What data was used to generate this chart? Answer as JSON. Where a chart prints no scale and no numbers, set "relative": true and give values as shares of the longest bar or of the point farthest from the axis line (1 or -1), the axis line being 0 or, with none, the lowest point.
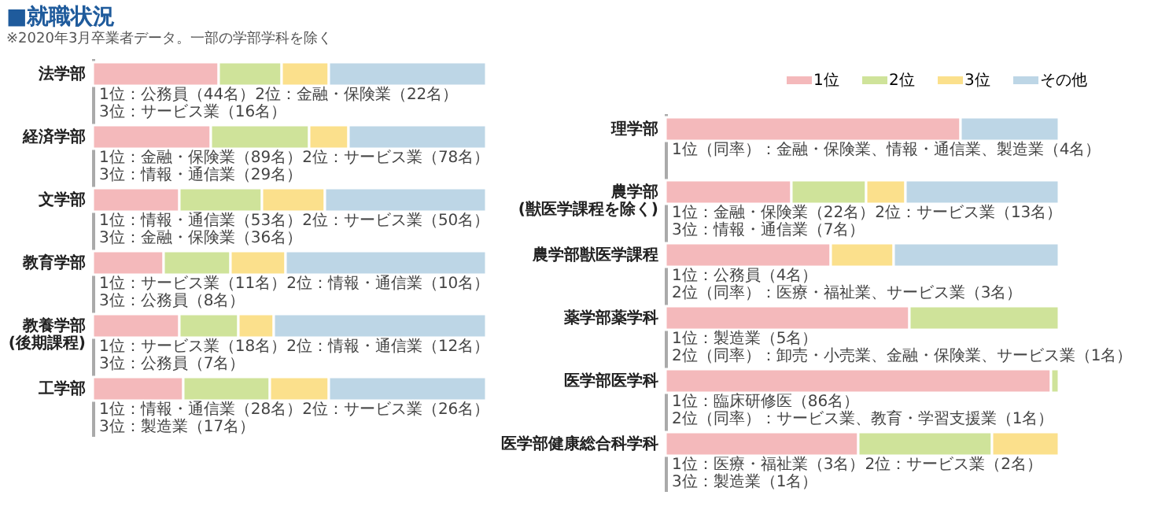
{
  "chart_data": [
    {
      "type": "bar",
      "orientation": "horizontal",
      "stacked": true,
      "relative": true,
      "title": "■就職状況",
      "subtitle": "※2020年3月卒業者データ。一部の学部学科を除く",
      "categories": [
        "法学部",
        "経済学部",
        "文学部",
        "教育学部",
        "教養学部\n(後期課程)",
        "工学部"
      ],
      "series": [
        {
          "color": "#f4b9bb",
          "values": [
            0.32,
            0.3,
            0.22,
            0.18,
            0.22,
            0.23
          ]
        },
        {
          "color": "#cfe39a",
          "values": [
            0.16,
            0.25,
            0.21,
            0.17,
            0.15,
            0.22
          ]
        },
        {
          "color": "#fbe08c",
          "values": [
            0.12,
            0.1,
            0.16,
            0.14,
            0.09,
            0.15
          ]
        },
        {
          "color": "#bdd6e6",
          "values": [
            0.4,
            0.35,
            0.41,
            0.51,
            0.54,
            0.4
          ]
        }
      ],
      "annotations": [
        "1位：公務員（44名）2位：金融・保険業（22名）\n3位：サービス業（16名）",
        "1位：金融・保険業（89名）2位：サービス業（78名）\n3位：情報・通信業（29名）",
        "1位：情報・通信業（53名）2位：サービス業（50名）\n3位：金融・保険業（36名）",
        "1位：サービス業（11名）2位：情報・通信業（10名）\n3位：公務員（8名）",
        "1位：サービス業（18名）2位：情報・通信業（12名）\n3位：公務員（7名）",
        "1位：情報・通信業（28名）2位：サービス業（26名）\n3位：製造業（17名）"
      ]
    },
    {
      "type": "bar",
      "orientation": "horizontal",
      "stacked": true,
      "relative": true,
      "legend": "top right",
      "categories": [
        "理学部",
        "農学部\n(獣医学課程を除く)",
        "農学部獣医学課程",
        "薬学部薬学科",
        "医学部医学科",
        "医学部健康総合科学科"
      ],
      "series": [
        {
          "name": "1位",
          "color": "#f4b9bb",
          "values": [
            0.75,
            0.32,
            0.42,
            0.62,
            0.98,
            0.49
          ]
        },
        {
          "name": "2位",
          "color": "#cfe39a",
          "values": [
            null,
            0.19,
            null,
            0.38,
            0.02,
            0.34
          ]
        },
        {
          "name": "3位",
          "color": "#fbe08c",
          "values": [
            null,
            0.1,
            0.16,
            null,
            null,
            0.17
          ]
        },
        {
          "name": "その他",
          "color": "#bdd6e6",
          "values": [
            0.25,
            0.39,
            0.42,
            null,
            null,
            null
          ]
        }
      ],
      "annotations": [
        "1位（同率）：金融・保険業、情報・通信業、製造業（4名）",
        "1位：金融・保険業（22名）2位：サービス業（13名）\n3位：情報・通信業（7名）",
        "1位：公務員（4名）\n2位（同率）：医療・福祉業、サービス業（3名）",
        "1位：製造業（5名）\n2位（同率）：卸売・小売業、金融・保険業、サービス業（1名）",
        "1位：臨床研修医（86名）\n2位（同率）：サービス業、教育・学習支援業（1名）",
        "1位：医療・福祉業（3名）2位：サービス業（2名）\n3位：製造業（1名）"
      ]
    }
  ]
}
